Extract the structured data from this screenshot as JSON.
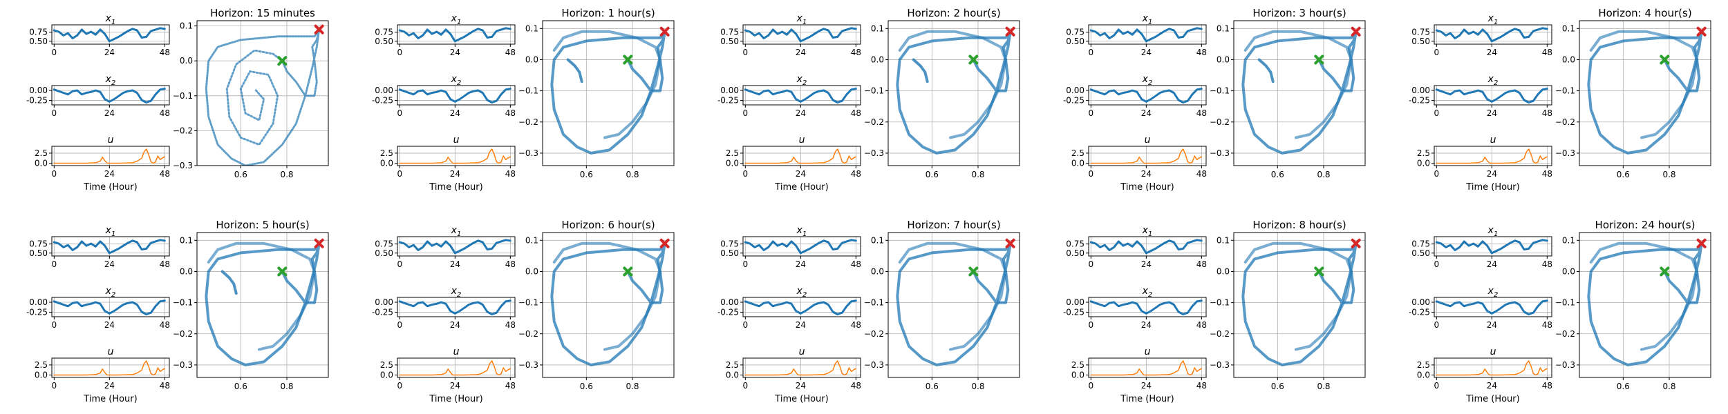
{
  "colors": {
    "state": "#1f77b4",
    "control": "#ff7f0e",
    "start_marker": "#2ca02c",
    "end_marker": "#d62728",
    "grid": "#b0b0b0"
  },
  "panel_labels": {
    "x1": "x",
    "x1_sub": "1",
    "x2": "x",
    "x2_sub": "2",
    "u": "u",
    "time_xlabel": "Time (Hour)"
  },
  "chart_data": [
    {
      "type": "line",
      "title": "Horizon: 15 minutes",
      "phase_line": "horizon-15min"
    },
    {
      "type": "line",
      "title": "Horizon: 1 hour(s)",
      "phase_line": "horizon-1h"
    },
    {
      "type": "line",
      "title": "Horizon: 2 hour(s)",
      "phase_line": "horizon-2h"
    },
    {
      "type": "line",
      "title": "Horizon: 3 hour(s)",
      "phase_line": "horizon-3h"
    },
    {
      "type": "line",
      "title": "Horizon: 4 hour(s)",
      "phase_line": "horizon-4h"
    },
    {
      "type": "line",
      "title": "Horizon: 5 hour(s)",
      "phase_line": "horizon-5h"
    },
    {
      "type": "line",
      "title": "Horizon: 6 hour(s)",
      "phase_line": "horizon-6h"
    },
    {
      "type": "line",
      "title": "Horizon: 7 hour(s)",
      "phase_line": "horizon-7h"
    },
    {
      "type": "line",
      "title": "Horizon: 8 hour(s)",
      "phase_line": "horizon-8h"
    },
    {
      "type": "line",
      "title": "Horizon: 24 hour(s)",
      "phase_line": "horizon-24h"
    }
  ],
  "time_series": {
    "x_ticks": [
      "0",
      "24",
      "48"
    ],
    "x1_ticks": [
      "0.75",
      "0.50"
    ],
    "x2_ticks": [
      "0.00",
      "-0.25"
    ],
    "u_ticks": [
      "2.5",
      "0.0"
    ],
    "xlim": [
      -1,
      50
    ],
    "x1_ylim": [
      0.42,
      0.95
    ],
    "x2_ylim": [
      -0.36,
      0.12
    ],
    "u_ylim": [
      -0.6,
      4.2
    ],
    "x1": [
      [
        0,
        0.8
      ],
      [
        2,
        0.76
      ],
      [
        4,
        0.66
      ],
      [
        6,
        0.72
      ],
      [
        8,
        0.58
      ],
      [
        10,
        0.66
      ],
      [
        12,
        0.82
      ],
      [
        14,
        0.7
      ],
      [
        16,
        0.76
      ],
      [
        18,
        0.68
      ],
      [
        20,
        0.82
      ],
      [
        22,
        0.7
      ],
      [
        24,
        0.5
      ],
      [
        26,
        0.56
      ],
      [
        28,
        0.62
      ],
      [
        30,
        0.7
      ],
      [
        32,
        0.78
      ],
      [
        34,
        0.84
      ],
      [
        36,
        0.8
      ],
      [
        38,
        0.6
      ],
      [
        40,
        0.62
      ],
      [
        42,
        0.78
      ],
      [
        44,
        0.82
      ],
      [
        46,
        0.86
      ],
      [
        48,
        0.84
      ]
    ],
    "x2": [
      [
        0,
        0.02
      ],
      [
        2,
        -0.02
      ],
      [
        4,
        -0.06
      ],
      [
        6,
        -0.1
      ],
      [
        8,
        -0.02
      ],
      [
        10,
        0.0
      ],
      [
        12,
        -0.1
      ],
      [
        14,
        -0.06
      ],
      [
        16,
        -0.04
      ],
      [
        18,
        0.0
      ],
      [
        20,
        -0.04
      ],
      [
        22,
        -0.22
      ],
      [
        24,
        -0.28
      ],
      [
        26,
        -0.22
      ],
      [
        28,
        -0.14
      ],
      [
        30,
        -0.06
      ],
      [
        32,
        -0.02
      ],
      [
        34,
        0.0
      ],
      [
        36,
        -0.06
      ],
      [
        38,
        -0.24
      ],
      [
        40,
        -0.3
      ],
      [
        42,
        -0.26
      ],
      [
        44,
        -0.1
      ],
      [
        46,
        0.02
      ],
      [
        48,
        0.04
      ]
    ],
    "u": [
      [
        0,
        0.0
      ],
      [
        8,
        0.0
      ],
      [
        14,
        0.0
      ],
      [
        18,
        0.1
      ],
      [
        20,
        0.5
      ],
      [
        21,
        1.5
      ],
      [
        22,
        0.6
      ],
      [
        23,
        0.0
      ],
      [
        28,
        0.0
      ],
      [
        34,
        0.1
      ],
      [
        36,
        0.5
      ],
      [
        38,
        1.2
      ],
      [
        39,
        2.8
      ],
      [
        40,
        3.5
      ],
      [
        41,
        2.2
      ],
      [
        42,
        0.4
      ],
      [
        43,
        0.0
      ],
      [
        44,
        0.3
      ],
      [
        45,
        1.8
      ],
      [
        46,
        0.9
      ],
      [
        47,
        1.3
      ],
      [
        48,
        1.6
      ]
    ]
  },
  "phase_axes": {
    "x_ticks": [
      0.6,
      0.8
    ],
    "x_tick_labels": [
      "0.6",
      "0.8"
    ],
    "xlim": [
      0.41,
      0.98
    ],
    "default": {
      "ylim": [
        -0.34,
        0.125
      ],
      "y_ticks": [
        0.1,
        0.0,
        -0.1,
        -0.2,
        -0.3
      ],
      "y_tick_labels": [
        "0.1",
        "0.0",
        "−0.1",
        "−0.2",
        "−0.3"
      ]
    },
    "horizon-15min": {
      "ylim": [
        -0.3,
        0.115
      ],
      "y_ticks": [
        0.1,
        0.0,
        -0.1,
        -0.2,
        -0.3
      ],
      "y_tick_labels": [
        "0.1",
        "0.0",
        "−0.1",
        "−0.2",
        "−0.3"
      ]
    }
  },
  "phase_curves": {
    "start": [
      0.78,
      0.0
    ],
    "end": [
      0.94,
      0.09
    ],
    "outer_loop": [
      [
        0.78,
        0.0
      ],
      [
        0.8,
        -0.03
      ],
      [
        0.84,
        -0.06
      ],
      [
        0.88,
        -0.1
      ],
      [
        0.92,
        -0.1
      ],
      [
        0.93,
        -0.06
      ],
      [
        0.92,
        0.0
      ],
      [
        0.91,
        0.04
      ],
      [
        0.93,
        0.06
      ],
      [
        0.94,
        0.09
      ],
      [
        0.92,
        0.07
      ],
      [
        0.88,
        0.07
      ],
      [
        0.76,
        0.07
      ],
      [
        0.6,
        0.06
      ],
      [
        0.5,
        0.04
      ],
      [
        0.46,
        0.0
      ],
      [
        0.45,
        -0.08
      ],
      [
        0.46,
        -0.16
      ],
      [
        0.5,
        -0.24
      ],
      [
        0.56,
        -0.28
      ],
      [
        0.62,
        -0.3
      ],
      [
        0.7,
        -0.29
      ],
      [
        0.78,
        -0.24
      ],
      [
        0.84,
        -0.18
      ],
      [
        0.88,
        -0.1
      ],
      [
        0.91,
        -0.02
      ],
      [
        0.93,
        0.04
      ],
      [
        0.94,
        0.09
      ]
    ],
    "inner_loop": [
      [
        0.46,
        0.03
      ],
      [
        0.5,
        0.07
      ],
      [
        0.58,
        0.09
      ],
      [
        0.7,
        0.09
      ],
      [
        0.82,
        0.07
      ],
      [
        0.9,
        0.04
      ],
      [
        0.92,
        0.0
      ],
      [
        0.9,
        -0.08
      ],
      [
        0.86,
        -0.14
      ],
      [
        0.8,
        -0.2
      ],
      [
        0.74,
        -0.24
      ],
      [
        0.68,
        -0.25
      ]
    ],
    "fragment": [
      [
        0.52,
        0.0
      ],
      [
        0.55,
        -0.02
      ],
      [
        0.57,
        -0.04
      ],
      [
        0.58,
        -0.07
      ]
    ],
    "spiral_15min": [
      [
        0.78,
        0.0
      ],
      [
        0.74,
        0.02
      ],
      [
        0.66,
        0.03
      ],
      [
        0.58,
        -0.01
      ],
      [
        0.54,
        -0.08
      ],
      [
        0.55,
        -0.16
      ],
      [
        0.6,
        -0.22
      ],
      [
        0.68,
        -0.24
      ],
      [
        0.74,
        -0.18
      ],
      [
        0.76,
        -0.1
      ],
      [
        0.72,
        -0.04
      ],
      [
        0.64,
        -0.03
      ],
      [
        0.6,
        -0.08
      ],
      [
        0.62,
        -0.15
      ],
      [
        0.68,
        -0.17
      ],
      [
        0.7,
        -0.11
      ],
      [
        0.66,
        -0.08
      ]
    ]
  }
}
